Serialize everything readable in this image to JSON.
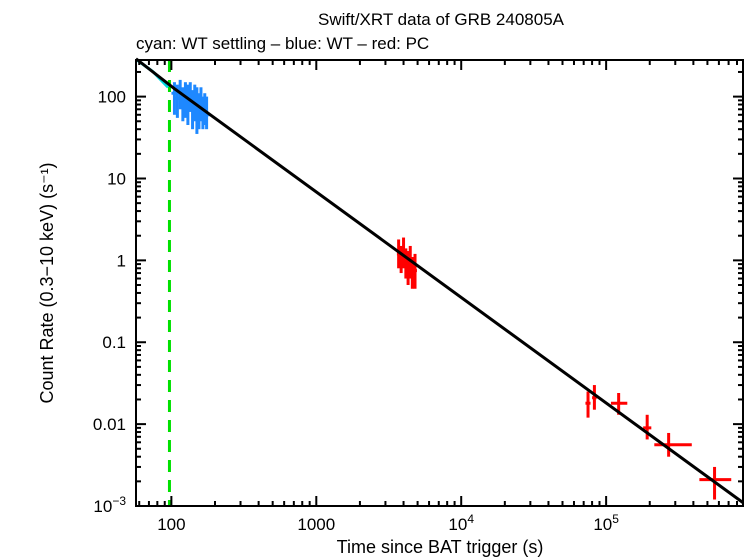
{
  "chart_data": {
    "type": "scatter",
    "title": "Swift/XRT data of GRB 240805A",
    "subtitle": "cyan: WT settling – blue: WT – red: PC",
    "xlabel": "Time since BAT trigger (s)",
    "ylabel": "Count Rate (0.3−10 keV) (s⁻¹)",
    "xscale": "log",
    "yscale": "log",
    "xlim": [
      57,
      880000
    ],
    "ylim": [
      0.001,
      280
    ],
    "xticks": [
      {
        "v": 100,
        "label": "100"
      },
      {
        "v": 1000,
        "label": "1000"
      },
      {
        "v": 10000,
        "label": "10",
        "sup": "4"
      },
      {
        "v": 100000,
        "label": "10",
        "sup": "5"
      }
    ],
    "yticks": [
      {
        "v": 100,
        "label": "100"
      },
      {
        "v": 10,
        "label": "10"
      },
      {
        "v": 1,
        "label": "1"
      },
      {
        "v": 0.1,
        "label": "0.1"
      },
      {
        "v": 0.01,
        "label": "0.01"
      },
      {
        "v": 0.001,
        "label": "10",
        "sup": "−3"
      }
    ],
    "colors": {
      "wt_settling": "#00d8e0",
      "wt": "#1e88ff",
      "pc": "#ff0000",
      "model": "#000000",
      "trigger_line": "#00e000"
    },
    "trigger_line_x": 97,
    "wt_settling": [
      [
        58,
        280
      ],
      [
        75,
        200
      ],
      [
        95,
        130
      ]
    ],
    "wt": [
      [
        105,
        110,
        60,
        150
      ],
      [
        110,
        95,
        55,
        140
      ],
      [
        115,
        120,
        70,
        160
      ],
      [
        120,
        85,
        50,
        130
      ],
      [
        125,
        100,
        55,
        150
      ],
      [
        130,
        90,
        45,
        140
      ],
      [
        135,
        110,
        65,
        150
      ],
      [
        140,
        75,
        40,
        120
      ],
      [
        145,
        95,
        50,
        140
      ],
      [
        150,
        80,
        35,
        130
      ],
      [
        155,
        70,
        40,
        110
      ],
      [
        160,
        90,
        50,
        130
      ],
      [
        165,
        65,
        40,
        100
      ],
      [
        170,
        75,
        45,
        110
      ],
      [
        175,
        60,
        40,
        100
      ]
    ],
    "pc": [
      {
        "x": 3700,
        "xlo": 3600,
        "xhi": 3800,
        "y": 1.2,
        "ylo": 0.8,
        "yhi": 1.8
      },
      {
        "x": 3850,
        "xlo": 3750,
        "xhi": 3950,
        "y": 1.0,
        "ylo": 0.7,
        "yhi": 1.5
      },
      {
        "x": 4000,
        "xlo": 3900,
        "xhi": 4100,
        "y": 1.3,
        "ylo": 0.8,
        "yhi": 1.9
      },
      {
        "x": 4150,
        "xlo": 4050,
        "xhi": 4250,
        "y": 0.9,
        "ylo": 0.6,
        "yhi": 1.4
      },
      {
        "x": 4300,
        "xlo": 4200,
        "xhi": 4400,
        "y": 0.8,
        "ylo": 0.5,
        "yhi": 1.3
      },
      {
        "x": 4450,
        "xlo": 4350,
        "xhi": 4550,
        "y": 1.0,
        "ylo": 0.6,
        "yhi": 1.5
      },
      {
        "x": 4600,
        "xlo": 4500,
        "xhi": 4700,
        "y": 0.7,
        "ylo": 0.45,
        "yhi": 1.1
      },
      {
        "x": 4800,
        "xlo": 4700,
        "xhi": 4950,
        "y": 0.75,
        "ylo": 0.45,
        "yhi": 1.2
      },
      {
        "x": 75000,
        "xlo": 72000,
        "xhi": 78000,
        "y": 0.018,
        "ylo": 0.012,
        "yhi": 0.025
      },
      {
        "x": 83000,
        "xlo": 80000,
        "xhi": 86000,
        "y": 0.021,
        "ylo": 0.015,
        "yhi": 0.03
      },
      {
        "x": 122000,
        "xlo": 108000,
        "xhi": 140000,
        "y": 0.018,
        "ylo": 0.013,
        "yhi": 0.024
      },
      {
        "x": 192000,
        "xlo": 180000,
        "xhi": 205000,
        "y": 0.009,
        "ylo": 0.0065,
        "yhi": 0.013
      },
      {
        "x": 270000,
        "xlo": 215000,
        "xhi": 390000,
        "y": 0.0056,
        "ylo": 0.004,
        "yhi": 0.0078
      },
      {
        "x": 560000,
        "xlo": 440000,
        "xhi": 730000,
        "y": 0.0021,
        "ylo": 0.0012,
        "yhi": 0.003
      }
    ],
    "model": [
      [
        57,
        290
      ],
      [
        105,
        125
      ],
      [
        880000,
        0.0011
      ]
    ]
  }
}
